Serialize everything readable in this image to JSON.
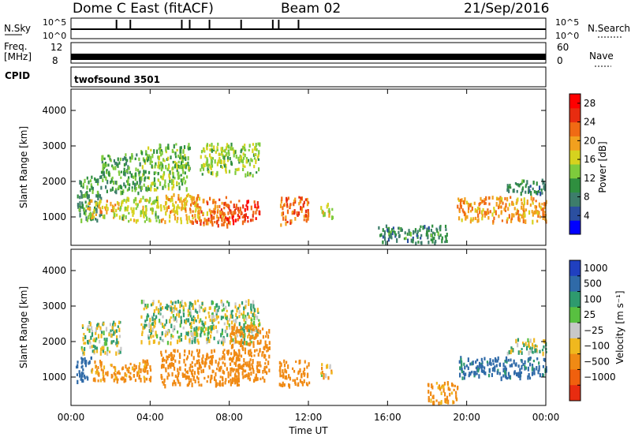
{
  "header": {
    "station": "Dome C East (fitACF)",
    "beam": "Beam 02",
    "date": "21/Sep/2016"
  },
  "nsky_panel": {
    "left_label": "N.Sky",
    "left_top_tick": "10^5",
    "left_bottom_tick": "10^0",
    "right_label": "N.Search",
    "right_top_tick": "10^5",
    "right_bottom_tick": "10^0"
  },
  "freq_panel": {
    "left_label_line1": "Freq.",
    "left_label_line2": "[MHz]",
    "left_top_tick": "12",
    "left_bottom_tick": "8",
    "right_label": "Nave",
    "right_top_tick": "60",
    "right_bottom_tick": "0"
  },
  "cpid_panel": {
    "label": "CPID",
    "value": "twofsound 3501"
  },
  "chart_data": [
    {
      "type": "heatmap",
      "panel": "power",
      "ylabel": "Slant Range [km]",
      "yticks": [
        "1000",
        "2000",
        "3000",
        "4000"
      ],
      "ylim": [
        200,
        4600
      ],
      "xlim": [
        0,
        24
      ],
      "colorbar_label": "Power [dB]",
      "colorbar_ticks": [
        "4",
        "8",
        "12",
        "16",
        "20",
        "24",
        "28"
      ],
      "colorbar_range": [
        0,
        30
      ],
      "colors": [
        "#0000ff",
        "#2b4fa0",
        "#3d7d6b",
        "#2f8f3f",
        "#7ecb3c",
        "#d6d21e",
        "#f2a01e",
        "#f06a14",
        "#e82c10",
        "#ff0000"
      ],
      "patches": [
        {
          "t": [
            0.3,
            1.5
          ],
          "r": [
            900,
            2200
          ],
          "value": 9
        },
        {
          "t": [
            0.8,
            2.5
          ],
          "r": [
            1000,
            1500
          ],
          "value": 18
        },
        {
          "t": [
            1.5,
            3.5
          ],
          "r": [
            1700,
            2800
          ],
          "value": 11
        },
        {
          "t": [
            2.5,
            4.5
          ],
          "r": [
            900,
            1600
          ],
          "value": 15
        },
        {
          "t": [
            3.5,
            6.0
          ],
          "r": [
            1800,
            3100
          ],
          "value": 13
        },
        {
          "t": [
            4.5,
            6.5
          ],
          "r": [
            900,
            1700
          ],
          "value": 19
        },
        {
          "t": [
            6.0,
            8.0
          ],
          "r": [
            800,
            1600
          ],
          "value": 22
        },
        {
          "t": [
            6.5,
            9.5
          ],
          "r": [
            2200,
            3100
          ],
          "value": 14
        },
        {
          "t": [
            7.5,
            9.5
          ],
          "r": [
            900,
            1500
          ],
          "value": 26
        },
        {
          "t": [
            10.5,
            12.0
          ],
          "r": [
            800,
            1600
          ],
          "value": 24
        },
        {
          "t": [
            12.6,
            13.2
          ],
          "r": [
            1000,
            1400
          ],
          "value": 16
        },
        {
          "t": [
            15.5,
            19.0
          ],
          "r": [
            300,
            800
          ],
          "value": 8
        },
        {
          "t": [
            19.5,
            24.0
          ],
          "r": [
            900,
            1600
          ],
          "value": 21
        },
        {
          "t": [
            22.0,
            24.0
          ],
          "r": [
            1700,
            2100
          ],
          "value": 8
        }
      ]
    },
    {
      "type": "heatmap",
      "panel": "velocity",
      "ylabel": "Slant Range [km]",
      "yticks": [
        "1000",
        "2000",
        "3000",
        "4000"
      ],
      "ylim": [
        200,
        4600
      ],
      "xlim": [
        0,
        24
      ],
      "xlabel": "Time UT",
      "xticks": [
        "00:00",
        "04:00",
        "08:00",
        "12:00",
        "16:00",
        "20:00",
        "00:00"
      ],
      "colorbar_label": "Velocity [m s⁻¹]",
      "colorbar_ticks": [
        "1000",
        "500",
        "100",
        "25",
        "−25",
        "−100",
        "−500",
        "−1000"
      ],
      "colors": [
        "#2040c0",
        "#2f6aa8",
        "#2e9a6e",
        "#58c040",
        "#c8c8c8",
        "#f0b81e",
        "#f08a14",
        "#f0600e",
        "#e82c10"
      ],
      "patches": [
        {
          "t": [
            0.2,
            1.0
          ],
          "r": [
            900,
            1600
          ],
          "value": 200
        },
        {
          "t": [
            0.5,
            2.5
          ],
          "r": [
            1700,
            2600
          ],
          "value": 0
        },
        {
          "t": [
            1.0,
            4.0
          ],
          "r": [
            900,
            1500
          ],
          "value": -150
        },
        {
          "t": [
            3.5,
            9.5
          ],
          "r": [
            2000,
            3200
          ],
          "value": 0
        },
        {
          "t": [
            4.5,
            8.5
          ],
          "r": [
            800,
            1800
          ],
          "value": -300
        },
        {
          "t": [
            8.0,
            10.0
          ],
          "r": [
            900,
            2500
          ],
          "value": -250
        },
        {
          "t": [
            10.5,
            12.0
          ],
          "r": [
            800,
            1500
          ],
          "value": -200
        },
        {
          "t": [
            12.6,
            13.2
          ],
          "r": [
            1000,
            1400
          ],
          "value": -80
        },
        {
          "t": [
            18.0,
            19.5
          ],
          "r": [
            300,
            900
          ],
          "value": -150
        },
        {
          "t": [
            19.5,
            24.0
          ],
          "r": [
            1000,
            1600
          ],
          "value": 150
        },
        {
          "t": [
            22.0,
            24.0
          ],
          "r": [
            1700,
            2100
          ],
          "value": 0
        }
      ]
    }
  ]
}
